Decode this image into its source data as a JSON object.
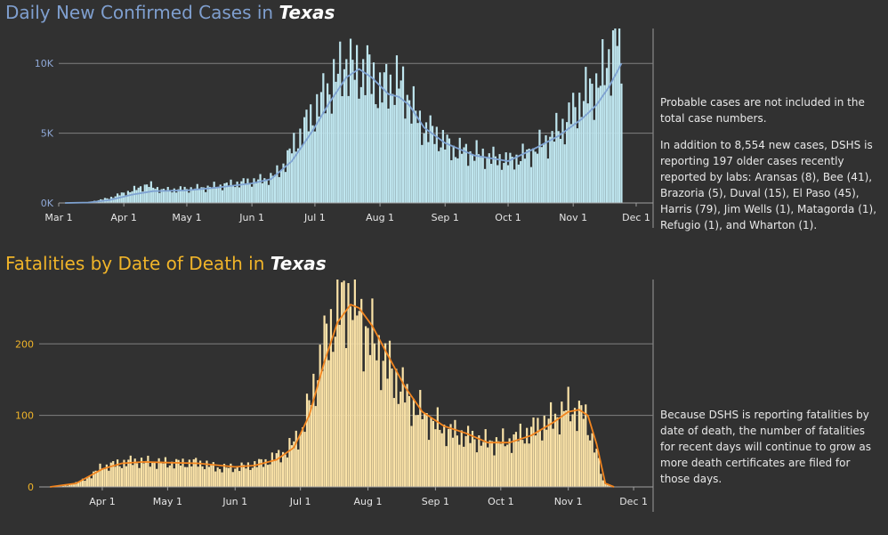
{
  "chart_data": [
    {
      "type": "bar",
      "title": "Daily New Confirmed Cases in",
      "title_place": "Texas",
      "x_tick_labels": [
        "Mar 1",
        "Apr 1",
        "May 1",
        "Jun 1",
        "Jul 1",
        "Aug 1",
        "Sep 1",
        "Oct 1",
        "Nov 1",
        "Dec 1"
      ],
      "y_tick_labels": [
        "0K",
        "5K",
        "10K"
      ],
      "y_ticks": [
        0,
        5000,
        10000
      ],
      "ylim": [
        0,
        12500
      ],
      "x_range": [
        "2020-03-01",
        "2020-12-01"
      ],
      "grid": true,
      "bar_color": "#bfe6ef",
      "line_color": "#7fa3d2",
      "series": [
        {
          "type": "bar",
          "points": [
            [
              "2020-03-04",
              0
            ],
            [
              "2020-03-15",
              50
            ],
            [
              "2020-03-25",
              350
            ],
            [
              "2020-04-01",
              700
            ],
            [
              "2020-04-08",
              1050
            ],
            [
              "2020-04-12",
              1300
            ],
            [
              "2020-04-20",
              900
            ],
            [
              "2020-05-01",
              1000
            ],
            [
              "2020-05-10",
              1100
            ],
            [
              "2020-05-20",
              1300
            ],
            [
              "2020-05-30",
              1500
            ],
            [
              "2020-06-08",
              1700
            ],
            [
              "2020-06-14",
              2200
            ],
            [
              "2020-06-20",
              3800
            ],
            [
              "2020-06-26",
              5400
            ],
            [
              "2020-07-03",
              7000
            ],
            [
              "2020-07-08",
              8300
            ],
            [
              "2020-07-12",
              9000
            ],
            [
              "2020-07-16",
              10200
            ],
            [
              "2020-07-20",
              9300
            ],
            [
              "2020-07-26",
              9500
            ],
            [
              "2020-08-01",
              8000
            ],
            [
              "2020-08-08",
              8800
            ],
            [
              "2020-08-14",
              7800
            ],
            [
              "2020-08-20",
              5600
            ],
            [
              "2020-08-28",
              4800
            ],
            [
              "2020-09-05",
              3800
            ],
            [
              "2020-09-14",
              3600
            ],
            [
              "2020-09-24",
              3200
            ],
            [
              "2020-10-02",
              3000
            ],
            [
              "2020-10-12",
              3600
            ],
            [
              "2020-10-20",
              4500
            ],
            [
              "2020-10-28",
              5600
            ],
            [
              "2020-11-04",
              7200
            ],
            [
              "2020-11-10",
              8200
            ],
            [
              "2020-11-16",
              9200
            ],
            [
              "2020-11-20",
              11500
            ],
            [
              "2020-11-23",
              12500
            ],
            [
              "2020-11-24",
              8554
            ]
          ]
        },
        {
          "type": "line",
          "points": [
            [
              "2020-03-04",
              0
            ],
            [
              "2020-03-15",
              30
            ],
            [
              "2020-03-25",
              200
            ],
            [
              "2020-04-05",
              600
            ],
            [
              "2020-04-15",
              850
            ],
            [
              "2020-05-01",
              900
            ],
            [
              "2020-05-15",
              1100
            ],
            [
              "2020-06-01",
              1400
            ],
            [
              "2020-06-10",
              1700
            ],
            [
              "2020-06-20",
              3000
            ],
            [
              "2020-06-30",
              5200
            ],
            [
              "2020-07-08",
              7200
            ],
            [
              "2020-07-16",
              9000
            ],
            [
              "2020-07-22",
              9600
            ],
            [
              "2020-07-28",
              9000
            ],
            [
              "2020-08-05",
              7800
            ],
            [
              "2020-08-10",
              7600
            ],
            [
              "2020-08-15",
              7000
            ],
            [
              "2020-08-22",
              5400
            ],
            [
              "2020-09-01",
              4300
            ],
            [
              "2020-09-15",
              3400
            ],
            [
              "2020-10-01",
              3000
            ],
            [
              "2020-10-15",
              4000
            ],
            [
              "2020-10-25",
              4800
            ],
            [
              "2020-11-05",
              6000
            ],
            [
              "2020-11-12",
              7000
            ],
            [
              "2020-11-18",
              8300
            ],
            [
              "2020-11-24",
              10000
            ]
          ]
        }
      ]
    },
    {
      "type": "bar",
      "title": "Fatalities by Date of Death in",
      "title_place": "Texas",
      "x_tick_labels": [
        "Apr 1",
        "May 1",
        "Jun 1",
        "Jul 1",
        "Aug 1",
        "Sep 1",
        "Oct 1",
        "Nov 1",
        "Dec 1"
      ],
      "y_tick_labels": [
        "0",
        "100",
        "200"
      ],
      "y_ticks": [
        0,
        100,
        200
      ],
      "ylim": [
        0,
        290
      ],
      "x_range": [
        "2020-03-03",
        "2020-12-03"
      ],
      "grid": true,
      "bar_color": "#fbe3a8",
      "line_color": "#f2851f",
      "series": [
        {
          "type": "bar",
          "points": [
            [
              "2020-03-08",
              0
            ],
            [
              "2020-03-16",
              2
            ],
            [
              "2020-03-24",
              10
            ],
            [
              "2020-04-01",
              28
            ],
            [
              "2020-04-08",
              32
            ],
            [
              "2020-04-15",
              36
            ],
            [
              "2020-04-25",
              34
            ],
            [
              "2020-05-05",
              33
            ],
            [
              "2020-05-15",
              34
            ],
            [
              "2020-05-25",
              26
            ],
            [
              "2020-06-05",
              28
            ],
            [
              "2020-06-15",
              35
            ],
            [
              "2020-06-25",
              50
            ],
            [
              "2020-07-02",
              80
            ],
            [
              "2020-07-08",
              150
            ],
            [
              "2020-07-14",
              220
            ],
            [
              "2020-07-20",
              252
            ],
            [
              "2020-07-24",
              275
            ],
            [
              "2020-07-28",
              240
            ],
            [
              "2020-08-01",
              215
            ],
            [
              "2020-08-08",
              180
            ],
            [
              "2020-08-14",
              150
            ],
            [
              "2020-08-20",
              120
            ],
            [
              "2020-08-28",
              96
            ],
            [
              "2020-09-05",
              80
            ],
            [
              "2020-09-15",
              70
            ],
            [
              "2020-09-25",
              62
            ],
            [
              "2020-10-05",
              64
            ],
            [
              "2020-10-15",
              78
            ],
            [
              "2020-10-25",
              95
            ],
            [
              "2020-11-01",
              110
            ],
            [
              "2020-11-08",
              102
            ],
            [
              "2020-11-13",
              60
            ],
            [
              "2020-11-17",
              8
            ],
            [
              "2020-11-20",
              2
            ]
          ]
        },
        {
          "type": "line",
          "points": [
            [
              "2020-03-08",
              0
            ],
            [
              "2020-03-20",
              5
            ],
            [
              "2020-04-01",
              25
            ],
            [
              "2020-04-10",
              33
            ],
            [
              "2020-04-20",
              35
            ],
            [
              "2020-05-01",
              34
            ],
            [
              "2020-05-15",
              33
            ],
            [
              "2020-06-01",
              28
            ],
            [
              "2020-06-10",
              30
            ],
            [
              "2020-06-20",
              38
            ],
            [
              "2020-06-28",
              55
            ],
            [
              "2020-07-05",
              100
            ],
            [
              "2020-07-12",
              175
            ],
            [
              "2020-07-18",
              230
            ],
            [
              "2020-07-24",
              255
            ],
            [
              "2020-07-28",
              250
            ],
            [
              "2020-08-03",
              225
            ],
            [
              "2020-08-10",
              185
            ],
            [
              "2020-08-18",
              140
            ],
            [
              "2020-08-26",
              105
            ],
            [
              "2020-09-05",
              85
            ],
            [
              "2020-09-15",
              75
            ],
            [
              "2020-09-25",
              62
            ],
            [
              "2020-10-05",
              62
            ],
            [
              "2020-10-15",
              72
            ],
            [
              "2020-10-25",
              90
            ],
            [
              "2020-11-01",
              105
            ],
            [
              "2020-11-06",
              108
            ],
            [
              "2020-11-10",
              100
            ],
            [
              "2020-11-14",
              60
            ],
            [
              "2020-11-18",
              5
            ],
            [
              "2020-11-22",
              0
            ]
          ]
        }
      ]
    }
  ],
  "notes": {
    "cases_probable": "Probable cases are not included in the total case numbers.",
    "cases_additional": "In addition to 8,554 new cases, DSHS is reporting 197 older cases recently reported by labs: Aransas (8), Bee (41), Brazoria (5), Duval (15), El Paso (45), Harris (79), Jim Wells (1), Matagorda (1), Refugio (1), and Wharton (1).",
    "fatalities": "Because DSHS is reporting fatalities by date of death, the number of fatalities for recent days will continue to grow as more death certificates are filed for those days."
  }
}
